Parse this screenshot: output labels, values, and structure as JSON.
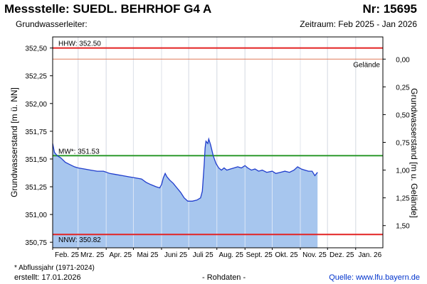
{
  "header": {
    "title": "Messstelle: SUEDL. BEHRHOF G4 A",
    "number": "Nr: 15695",
    "aquifer_label": "Grundwasserleiter:",
    "period": "Zeitraum: Feb 2025 - Jan 2026"
  },
  "footer": {
    "footnote": "* Abflussjahr (1971-2024)",
    "created": "erstellt:  17.01.2026",
    "rawdata": "- Rohdaten -",
    "source_label": "Quelle:",
    "source_url": "www.lfu.bayern.de"
  },
  "colors": {
    "fill": "#a7c6ee",
    "line": "#1f3ccc",
    "hhw": "#e32222",
    "nnw": "#e32222",
    "ground": "#e07a5a",
    "mean": "#2e9a2e",
    "month_grid": "#c0c0c0"
  },
  "chart_data": {
    "type": "area",
    "ylabel": "Grundwasserstand [m ü. NN]",
    "ylabel_right": "Grundwasserstand [m u. Gelände]",
    "y_ticks": [
      "352,50",
      "352,25",
      "352,00",
      "351,75",
      "351,50",
      "351,25",
      "351,00",
      "350,75"
    ],
    "y_tick_values": [
      352.5,
      352.25,
      352.0,
      351.75,
      351.5,
      351.25,
      351.0,
      350.75
    ],
    "y_right_ticks": [
      "0,00",
      "0,25",
      "0,50",
      "0,75",
      "1,00",
      "1,25",
      "1,50"
    ],
    "y_right_tick_values": [
      0.0,
      0.25,
      0.5,
      0.75,
      1.0,
      1.25,
      1.5
    ],
    "ylim": [
      350.7,
      352.6
    ],
    "ground_level": 352.4,
    "x_ticks": [
      "Feb. 25",
      "Mrz. 25",
      "Apr. 25",
      "Mai 25",
      "Juni 25",
      "Juli 25",
      "Aug. 25",
      "Sept. 25",
      "Okt. 25",
      "Nov. 25",
      "Dez. 25",
      "Jan. 26"
    ],
    "x_range": [
      "2025-02-01",
      "2026-01-31"
    ],
    "reference_lines": [
      {
        "id": "hhw",
        "label": "HHW: 352.50",
        "value": 352.5
      },
      {
        "id": "ground",
        "label": "Gelände",
        "value": 352.4
      },
      {
        "id": "mean",
        "label": "MW*: 351.53",
        "value": 351.53
      },
      {
        "id": "nnw",
        "label": "NNW: 350.82",
        "value": 350.82
      }
    ],
    "grid_vertical": true,
    "series": [
      {
        "points": [
          [
            "2025-02-01",
            351.64
          ],
          [
            "2025-02-03",
            351.56
          ],
          [
            "2025-02-06",
            351.53
          ],
          [
            "2025-02-10",
            351.51
          ],
          [
            "2025-02-15",
            351.47
          ],
          [
            "2025-02-20",
            351.45
          ],
          [
            "2025-02-25",
            351.43
          ],
          [
            "2025-03-01",
            351.42
          ],
          [
            "2025-03-08",
            351.41
          ],
          [
            "2025-03-15",
            351.4
          ],
          [
            "2025-03-22",
            351.39
          ],
          [
            "2025-03-29",
            351.39
          ],
          [
            "2025-04-05",
            351.37
          ],
          [
            "2025-04-12",
            351.36
          ],
          [
            "2025-04-19",
            351.35
          ],
          [
            "2025-04-26",
            351.34
          ],
          [
            "2025-05-03",
            351.33
          ],
          [
            "2025-05-10",
            351.32
          ],
          [
            "2025-05-15",
            351.29
          ],
          [
            "2025-05-20",
            351.27
          ],
          [
            "2025-05-26",
            351.25
          ],
          [
            "2025-05-30",
            351.24
          ],
          [
            "2025-06-01",
            351.27
          ],
          [
            "2025-06-03",
            351.33
          ],
          [
            "2025-06-05",
            351.37
          ],
          [
            "2025-06-07",
            351.34
          ],
          [
            "2025-06-10",
            351.31
          ],
          [
            "2025-06-14",
            351.28
          ],
          [
            "2025-06-18",
            351.24
          ],
          [
            "2025-06-22",
            351.2
          ],
          [
            "2025-06-26",
            351.15
          ],
          [
            "2025-06-30",
            351.12
          ],
          [
            "2025-07-05",
            351.12
          ],
          [
            "2025-07-10",
            351.13
          ],
          [
            "2025-07-14",
            351.15
          ],
          [
            "2025-07-16",
            351.21
          ],
          [
            "2025-07-18",
            351.45
          ],
          [
            "2025-07-19",
            351.6
          ],
          [
            "2025-07-20",
            351.66
          ],
          [
            "2025-07-22",
            351.64
          ],
          [
            "2025-07-23",
            351.68
          ],
          [
            "2025-07-25",
            351.63
          ],
          [
            "2025-07-28",
            351.53
          ],
          [
            "2025-07-31",
            351.46
          ],
          [
            "2025-08-03",
            351.42
          ],
          [
            "2025-08-06",
            351.4
          ],
          [
            "2025-08-09",
            351.42
          ],
          [
            "2025-08-12",
            351.4
          ],
          [
            "2025-08-16",
            351.41
          ],
          [
            "2025-08-20",
            351.42
          ],
          [
            "2025-08-24",
            351.43
          ],
          [
            "2025-08-28",
            351.42
          ],
          [
            "2025-09-01",
            351.44
          ],
          [
            "2025-09-04",
            351.42
          ],
          [
            "2025-09-08",
            351.4
          ],
          [
            "2025-09-12",
            351.41
          ],
          [
            "2025-09-16",
            351.39
          ],
          [
            "2025-09-20",
            351.4
          ],
          [
            "2025-09-25",
            351.38
          ],
          [
            "2025-10-01",
            351.39
          ],
          [
            "2025-10-05",
            351.37
          ],
          [
            "2025-10-10",
            351.38
          ],
          [
            "2025-10-15",
            351.39
          ],
          [
            "2025-10-20",
            351.38
          ],
          [
            "2025-10-25",
            351.4
          ],
          [
            "2025-10-29",
            351.43
          ],
          [
            "2025-11-02",
            351.41
          ],
          [
            "2025-11-06",
            351.4
          ],
          [
            "2025-11-10",
            351.39
          ],
          [
            "2025-11-14",
            351.39
          ],
          [
            "2025-11-17",
            351.35
          ],
          [
            "2025-11-19",
            351.37
          ],
          [
            "2025-11-20",
            351.38
          ]
        ]
      }
    ]
  }
}
